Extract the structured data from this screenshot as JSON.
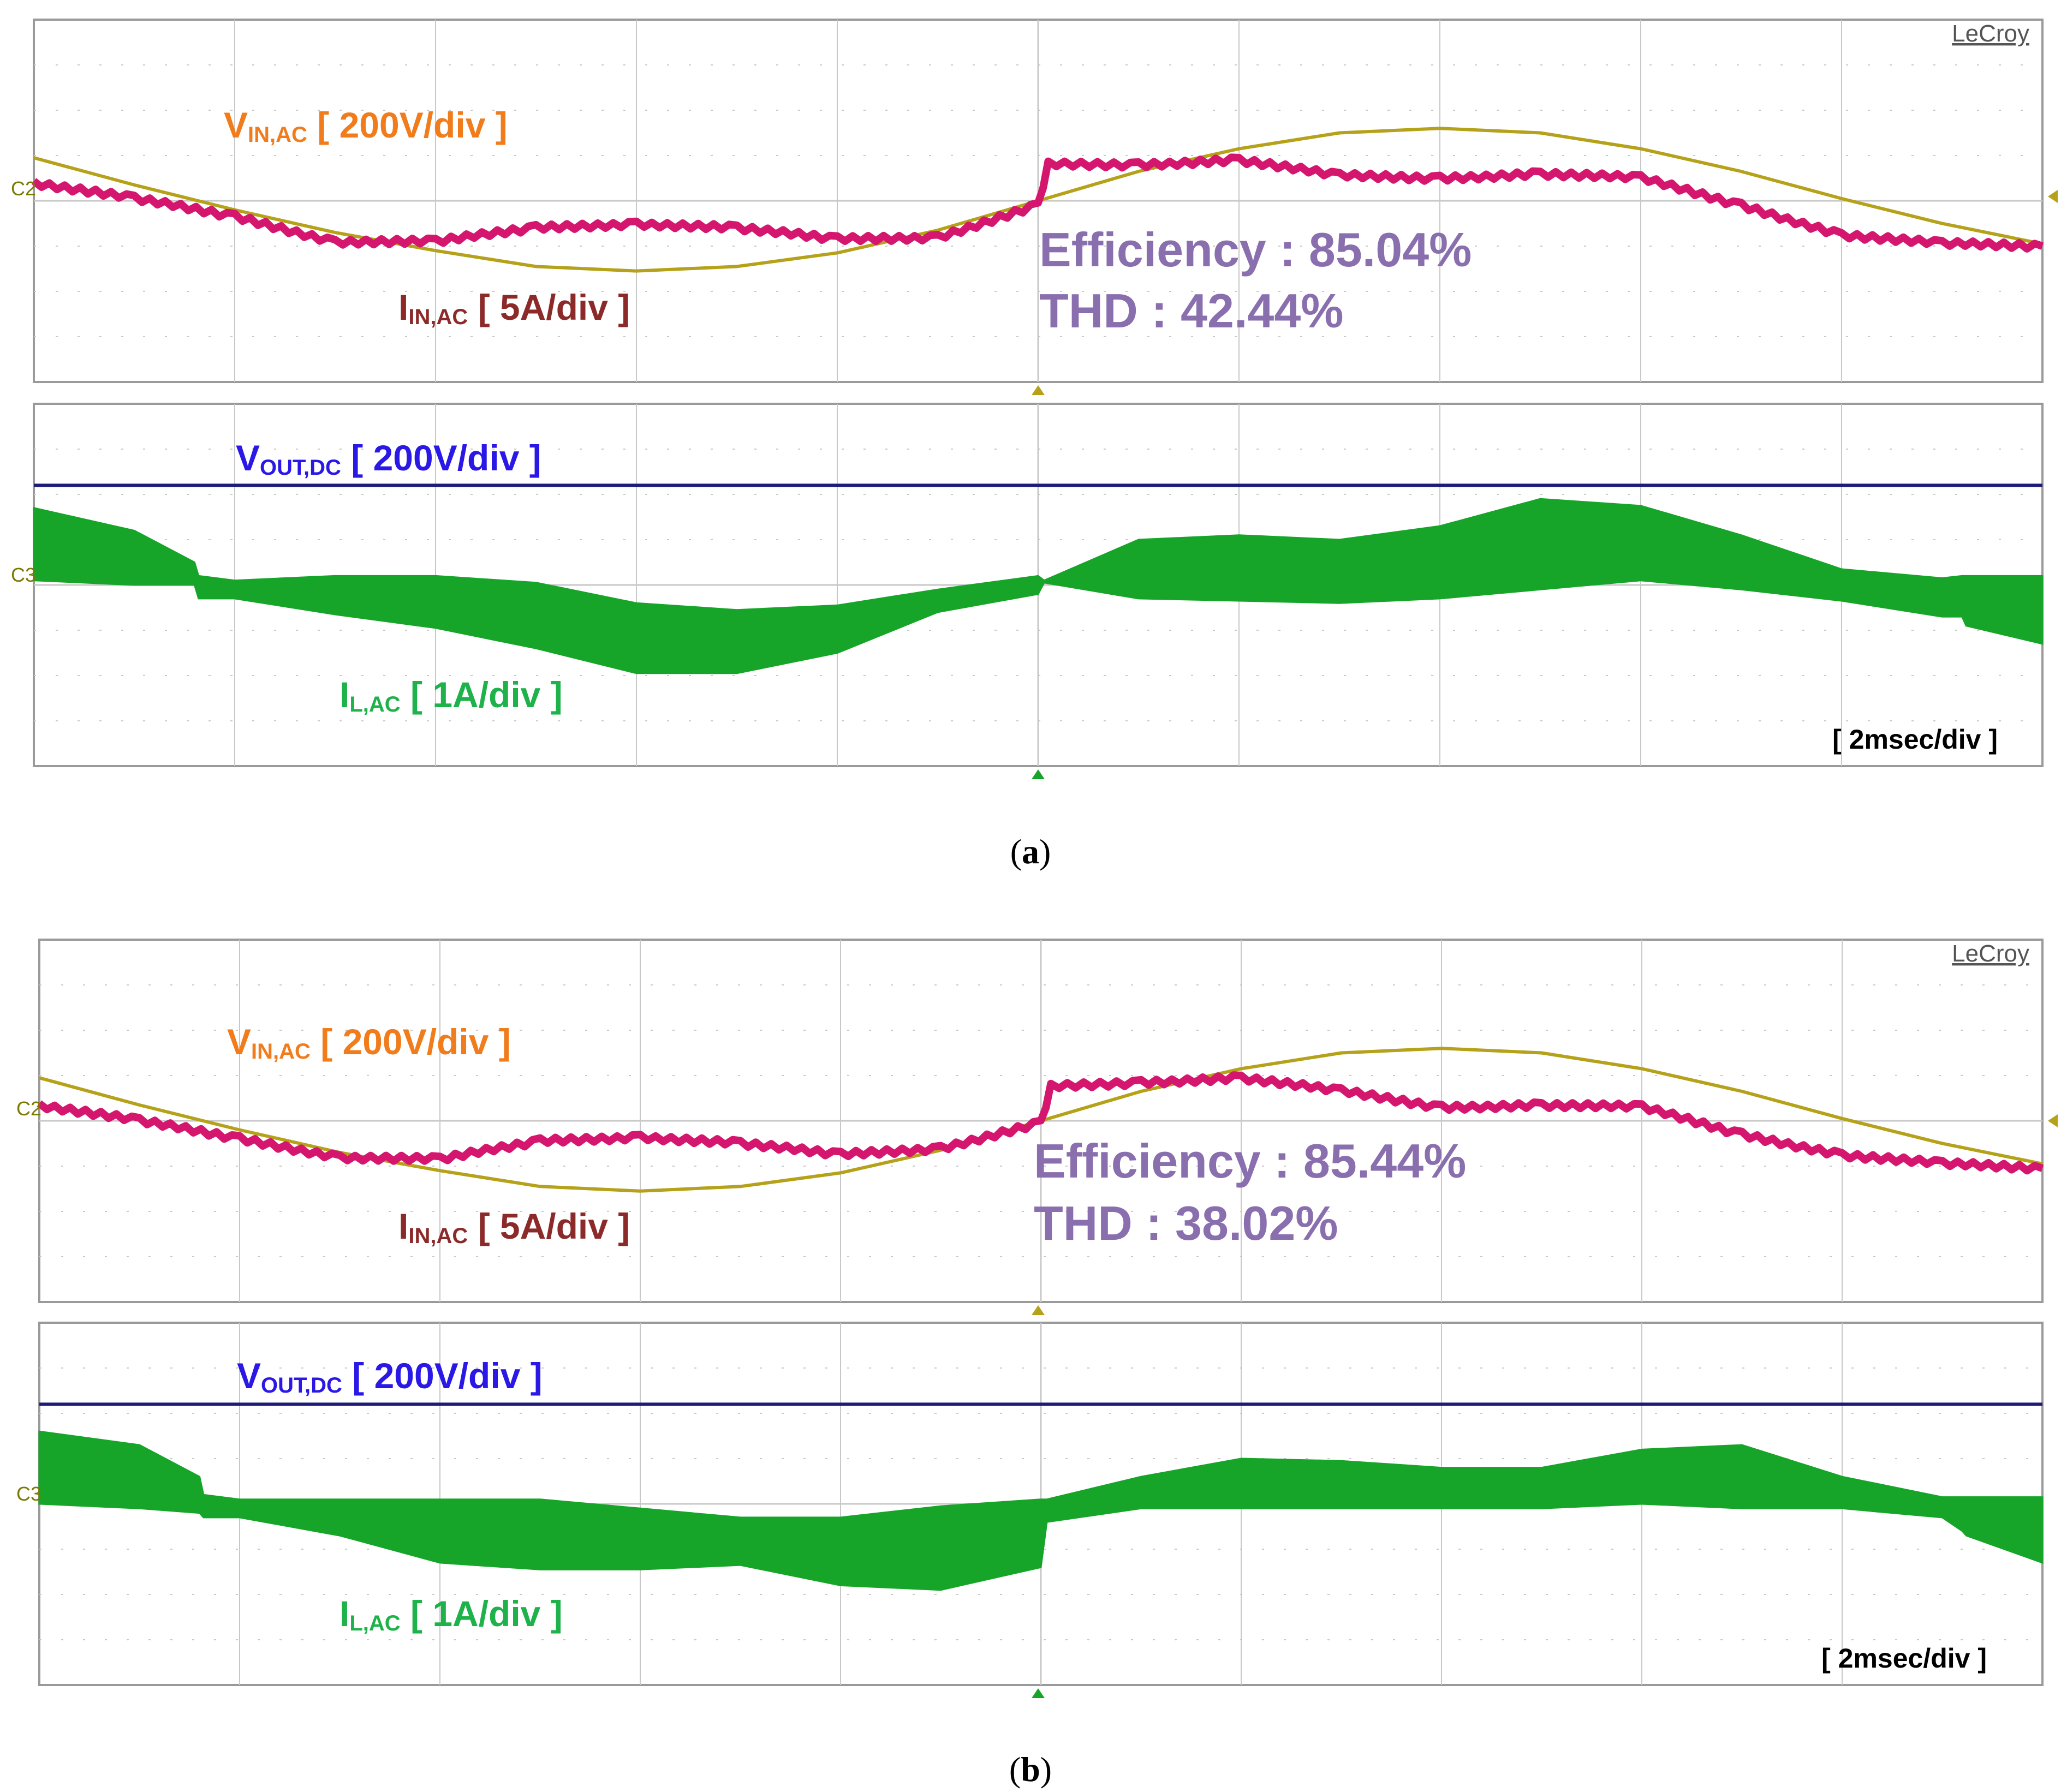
{
  "colors": {
    "vin": "#f07c1c",
    "iin": "#8c2a2a",
    "vout": "#2a18e6",
    "il": "#1eb24a",
    "annotation": "#8a6fae",
    "trace_vin": "#b5a21a",
    "trace_iin": "#d5166f",
    "trace_vout": "#1c1c78",
    "trace_il": "#16a528",
    "grid": "#c8c8c8"
  },
  "panels": [
    {
      "caption_open": "(",
      "caption_letter": "a",
      "caption_close": ")",
      "brand": "LeCroy",
      "top_marker": "C2",
      "bottom_marker": "C3",
      "vin_label": {
        "main": "V",
        "sub": "IN,AC",
        "scale": " [ 200V/div ]"
      },
      "iin_label": {
        "main": "I",
        "sub": "IN,AC",
        "scale": " [ 5A/div ]"
      },
      "vout_label": {
        "main": "V",
        "sub": "OUT,DC",
        "scale": " [ 200V/div ]"
      },
      "il_label": {
        "main": "I",
        "sub": "L,AC",
        "scale": " [ 1A/div ]"
      },
      "efficiency": "Efficiency : 85.04%",
      "thd": "THD : 42.44%",
      "timebase": "[ 2msec/div ]"
    },
    {
      "caption_open": "(",
      "caption_letter": "b",
      "caption_close": ")",
      "brand": "LeCroy",
      "top_marker": "C2",
      "bottom_marker": "C3",
      "vin_label": {
        "main": "V",
        "sub": "IN,AC",
        "scale": " [ 200V/div ]"
      },
      "iin_label": {
        "main": "I",
        "sub": "IN,AC",
        "scale": " [ 5A/div ]"
      },
      "vout_label": {
        "main": "V",
        "sub": "OUT,DC",
        "scale": " [ 200V/div ]"
      },
      "il_label": {
        "main": "I",
        "sub": "L,AC",
        "scale": " [ 1A/div ]"
      },
      "efficiency": "Efficiency : 85.44%",
      "thd": "THD : 38.02%",
      "timebase": "[ 2msec/div ]"
    }
  ],
  "chart_data": [
    {
      "type": "line",
      "x_unit": "div",
      "y_unit": "div",
      "x_divisions": 10,
      "grid": true,
      "top_screen_y_divisions": 8,
      "bottom_screen_y_divisions": 8,
      "series": [
        {
          "x": [
            0,
            0.5,
            1,
            1.5,
            2,
            2.5,
            3,
            3.5,
            4,
            4.5,
            5,
            5.5,
            6,
            6.5,
            7,
            7.5,
            8,
            8.5,
            9,
            9.5,
            10
          ],
          "y": [
            0.95,
            0.35,
            -0.2,
            -0.7,
            -1.1,
            -1.45,
            -1.55,
            -1.45,
            -1.15,
            -0.65,
            0,
            0.65,
            1.15,
            1.5,
            1.6,
            1.5,
            1.15,
            0.65,
            0.05,
            -0.5,
            -0.95
          ]
        },
        {
          "x": [
            0,
            0.5,
            1,
            1.5,
            2,
            2.5,
            3,
            3.5,
            4,
            4.5,
            5,
            5.05,
            5.5,
            6,
            6.5,
            7,
            7.5,
            8,
            8.5,
            9,
            9.5,
            10
          ],
          "y": [
            0.4,
            0.05,
            -0.35,
            -0.9,
            -0.9,
            -0.6,
            -0.5,
            -0.6,
            -0.85,
            -0.8,
            -0.1,
            0.8,
            0.8,
            0.9,
            0.55,
            0.5,
            0.6,
            0.5,
            -0.1,
            -0.75,
            -0.95,
            -1.0
          ]
        },
        {
          "x": [
            0,
            10
          ],
          "y": [
            2.2,
            2.2
          ]
        },
        {
          "x": [
            0,
            0.5,
            0.8,
            0.82,
            1,
            1.5,
            2,
            2.5,
            3,
            3.5,
            4,
            4.5,
            5,
            5.03,
            5.5,
            6,
            6.5,
            7,
            7.5,
            8,
            8.5,
            9,
            9.5,
            9.6,
            9.62,
            10
          ],
          "y_upper": [
            1.7,
            1.2,
            0.5,
            0.2,
            0.1,
            0.2,
            0.2,
            0.05,
            -0.4,
            -0.55,
            -0.45,
            -0.1,
            0.2,
            0.1,
            1.0,
            1.1,
            1.0,
            1.3,
            1.9,
            1.75,
            1.1,
            0.35,
            0.15,
            0.2,
            0.2,
            0.2
          ],
          "y_lower": [
            0.1,
            0,
            0,
            -0.3,
            -0.3,
            -0.65,
            -0.95,
            -1.4,
            -1.95,
            -1.95,
            -1.5,
            -0.6,
            -0.2,
            0.05,
            -0.3,
            -0.35,
            -0.4,
            -0.3,
            -0.1,
            0.1,
            -0.1,
            -0.35,
            -0.7,
            -0.7,
            -0.9,
            -1.3
          ]
        }
      ]
    },
    {
      "type": "line",
      "x_unit": "div",
      "y_unit": "div",
      "x_divisions": 10,
      "grid": true,
      "top_screen_y_divisions": 8,
      "bottom_screen_y_divisions": 8,
      "series": [
        {
          "x": [
            0,
            0.5,
            1,
            1.5,
            2,
            2.5,
            3,
            3.5,
            4,
            4.5,
            5,
            5.5,
            6,
            6.5,
            7,
            7.5,
            8,
            8.5,
            9,
            9.5,
            10
          ],
          "y": [
            0.95,
            0.35,
            -0.2,
            -0.7,
            -1.1,
            -1.45,
            -1.55,
            -1.45,
            -1.15,
            -0.65,
            0,
            0.65,
            1.15,
            1.5,
            1.6,
            1.5,
            1.15,
            0.65,
            0.05,
            -0.5,
            -0.95
          ]
        },
        {
          "x": [
            0,
            0.5,
            1,
            1.5,
            2,
            2.5,
            3,
            3.5,
            4,
            4.5,
            5,
            5.05,
            5.5,
            6,
            6.5,
            7,
            7.5,
            8,
            8.5,
            9,
            9.5,
            10
          ],
          "y": [
            0.35,
            0,
            -0.4,
            -0.8,
            -0.85,
            -0.45,
            -0.35,
            -0.5,
            -0.75,
            -0.6,
            -0.05,
            0.75,
            0.85,
            0.95,
            0.65,
            0.3,
            0.35,
            0.3,
            -0.3,
            -0.75,
            -0.95,
            -1.05
          ]
        },
        {
          "x": [
            0,
            10
          ],
          "y": [
            2.2,
            2.2
          ]
        },
        {
          "x": [
            0,
            0.5,
            0.8,
            0.82,
            1,
            1.5,
            2,
            2.5,
            3,
            3.5,
            4,
            4.5,
            5,
            5.03,
            5.5,
            6,
            6.5,
            7,
            7.5,
            8,
            8.5,
            9,
            9.5,
            9.6,
            9.62,
            10
          ],
          "y_upper": [
            1.6,
            1.3,
            0.6,
            0.2,
            0.1,
            0.1,
            0.1,
            0.1,
            -0.1,
            -0.3,
            -0.3,
            -0.05,
            0.1,
            0.1,
            0.6,
            1.0,
            0.95,
            0.8,
            0.8,
            1.2,
            1.3,
            0.6,
            0.15,
            0.15,
            0.15,
            0.15
          ],
          "y_lower": [
            0,
            -0.1,
            -0.2,
            -0.3,
            -0.3,
            -0.7,
            -1.3,
            -1.45,
            -1.45,
            -1.35,
            -1.8,
            -1.9,
            -1.4,
            -0.4,
            -0.1,
            -0.1,
            -0.1,
            -0.1,
            -0.1,
            0,
            -0.1,
            -0.1,
            -0.3,
            -0.6,
            -0.7,
            -1.3
          ]
        }
      ]
    }
  ]
}
